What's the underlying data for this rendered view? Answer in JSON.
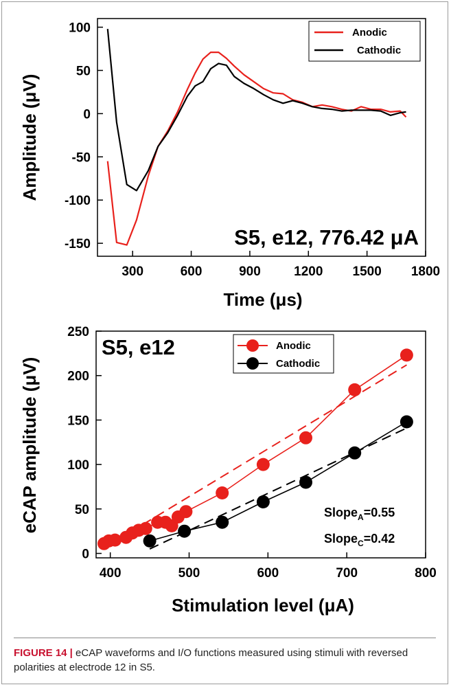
{
  "chart_data": [
    {
      "type": "line",
      "annotation": "S5, e12, 776.42 μA",
      "xlabel": "Time (μs)",
      "ylabel": "Amplitude (μV)",
      "xlim": [
        120,
        1800
      ],
      "ylim": [
        -165,
        110
      ],
      "xticks": [
        300,
        600,
        900,
        1200,
        1500,
        1800
      ],
      "yticks": [
        -150,
        -100,
        -50,
        0,
        50,
        100
      ],
      "legend_position": "top-right",
      "grid": false,
      "series": [
        {
          "name": "Anodic",
          "color": "#e8211c",
          "x": [
            172,
            218,
            270,
            320,
            380,
            430,
            480,
            530,
            580,
            620,
            660,
            700,
            740,
            780,
            820,
            870,
            920,
            970,
            1020,
            1070,
            1120,
            1170,
            1220,
            1270,
            1320,
            1370,
            1420,
            1470,
            1520,
            1570,
            1620,
            1670,
            1700
          ],
          "y": [
            -55,
            -149,
            -152,
            -123,
            -72,
            -38,
            -20,
            2,
            28,
            47,
            63,
            71,
            71,
            64,
            55,
            45,
            37,
            29,
            24,
            23,
            16,
            13,
            8,
            10,
            8,
            5,
            3,
            8,
            5,
            5,
            2,
            3,
            -4
          ]
        },
        {
          "name": "Cathodic",
          "color": "#000000",
          "x": [
            172,
            218,
            270,
            320,
            380,
            430,
            480,
            530,
            580,
            620,
            660,
            700,
            740,
            780,
            820,
            870,
            920,
            970,
            1020,
            1070,
            1120,
            1170,
            1220,
            1270,
            1320,
            1370,
            1420,
            1470,
            1520,
            1570,
            1620,
            1670,
            1700
          ],
          "y": [
            98,
            -10,
            -82,
            -89,
            -66,
            -38,
            -22,
            -2,
            20,
            32,
            37,
            52,
            58,
            56,
            43,
            35,
            29,
            22,
            16,
            12,
            15,
            12,
            8,
            6,
            5,
            3,
            4,
            4,
            4,
            3,
            -2,
            1,
            2
          ]
        }
      ]
    },
    {
      "type": "scatter",
      "annotation": "S5, e12",
      "xlabel": "Stimulation level (μA)",
      "ylabel": "eCAP amplitude (μV)",
      "xlim": [
        382,
        800
      ],
      "ylim": [
        -5,
        250
      ],
      "xticks": [
        400,
        500,
        600,
        700,
        800
      ],
      "yticks": [
        0,
        50,
        100,
        150,
        200,
        250
      ],
      "legend_position": "top-center",
      "grid": false,
      "slopes": [
        {
          "base": "Slope",
          "sub": "A",
          "value": "=0.55"
        },
        {
          "base": "Slope",
          "sub": "C",
          "value": "=0.42"
        }
      ],
      "series": [
        {
          "name": "Anodic",
          "color": "#e8211c",
          "x": [
            392,
            398,
            406,
            420,
            428,
            436,
            445,
            460,
            470,
            478,
            486,
            496,
            542,
            594,
            648,
            710,
            776
          ],
          "y": [
            11,
            14,
            15,
            18,
            23,
            26,
            28,
            35,
            35,
            31,
            41,
            47,
            68,
            100,
            130,
            184,
            223
          ],
          "fit": {
            "x": [
              392,
              776
            ],
            "y": [
              6,
              212
            ]
          }
        },
        {
          "name": "Cathodic",
          "color": "#000000",
          "x": [
            450,
            494,
            542,
            594,
            648,
            710,
            776
          ],
          "y": [
            14,
            25,
            35,
            58,
            80,
            113,
            148
          ],
          "fit": {
            "x": [
              450,
              776
            ],
            "y": [
              5,
              141
            ]
          }
        }
      ]
    }
  ],
  "caption": {
    "label": "FIGURE 14 |",
    "text": " eCAP waveforms and I/O functions measured using stimuli with reversed polarities at electrode 12 in S5."
  }
}
